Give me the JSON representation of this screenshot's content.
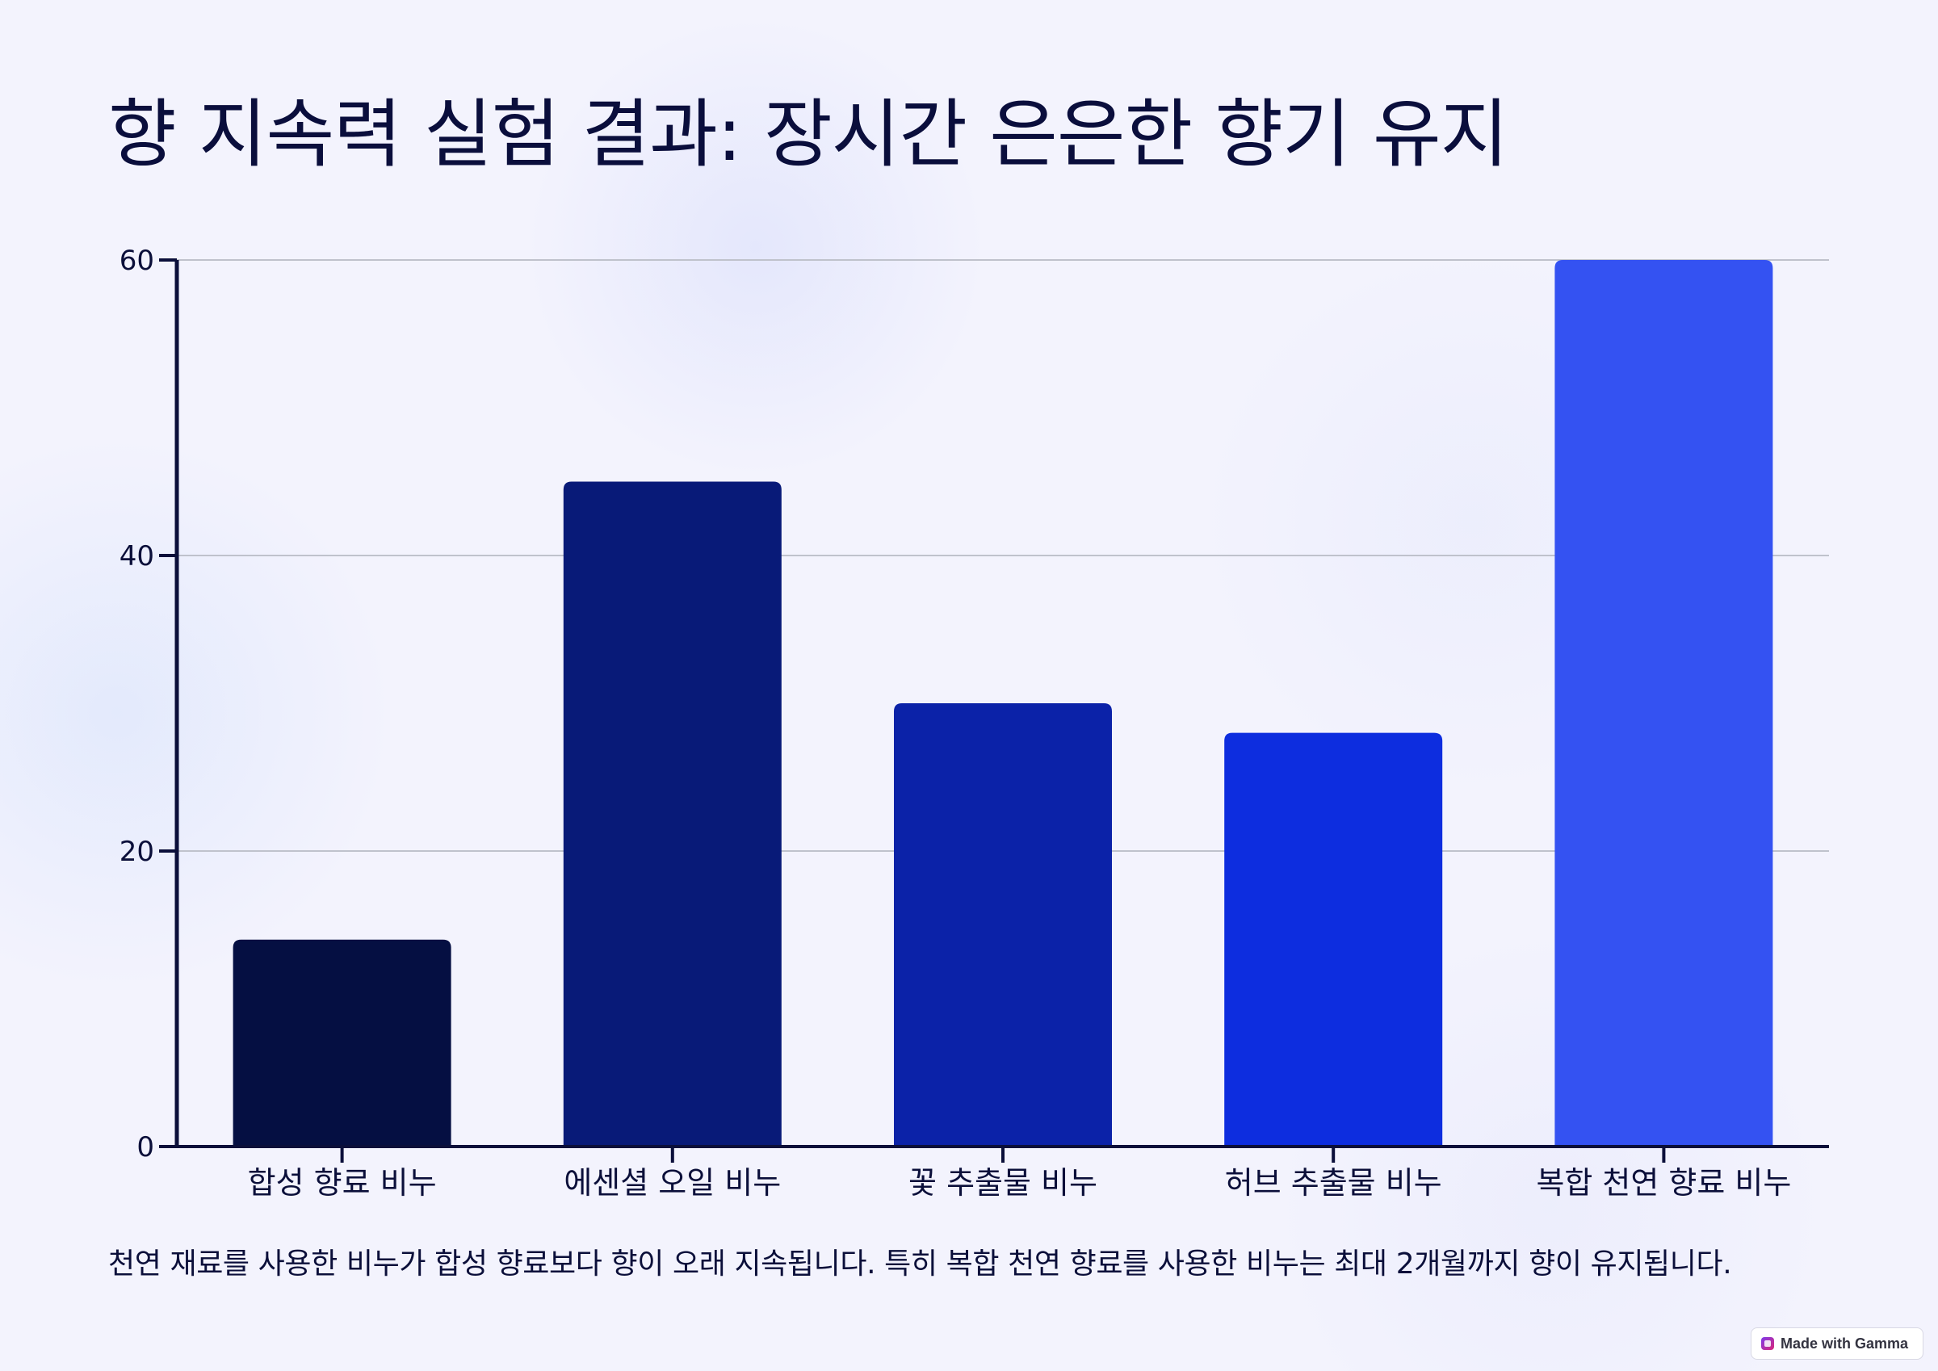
{
  "page": {
    "title": "향 지속력 실험 결과: 장시간 은은한 향기 유지",
    "caption": "천연 재료를 사용한 비누가 합성 향료보다 향이 오래 지속됩니다. 특히 복합 천연 향료를 사용한 비누는 최대 2개월까지 향이 유지됩니다.",
    "badge": {
      "label": "Made with Gamma",
      "icon": "gamma-logo-icon"
    }
  },
  "chart_data": {
    "type": "bar",
    "title": "",
    "xlabel": "",
    "ylabel": "",
    "categories": [
      "합성 향료 비누",
      "에센셜 오일 비누",
      "꽃 추출물 비누",
      "허브 추출물 비누",
      "복합 천연 향료 비누"
    ],
    "values": [
      14,
      45,
      30,
      28,
      60
    ],
    "colors": [
      "#050f42",
      "#081a78",
      "#0b22a8",
      "#0d2ddf",
      "#3452f2"
    ],
    "ylim": [
      0,
      60
    ],
    "yticks": [
      0,
      20,
      40,
      60
    ],
    "grid": true,
    "legend": "none"
  }
}
